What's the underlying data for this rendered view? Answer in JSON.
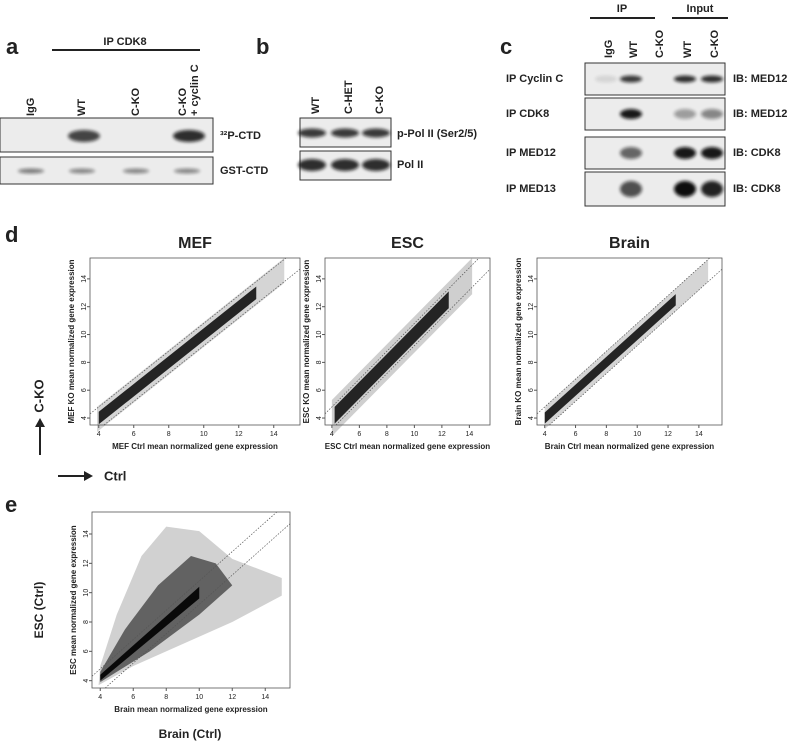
{
  "panel_a": {
    "letter": "a",
    "header": "IP CDK8",
    "lanes": [
      "IgG",
      "WT",
      "C-KO",
      "C-KO + cyclin C"
    ],
    "rows": [
      "³²P-CTD",
      "GST-CTD"
    ]
  },
  "panel_b": {
    "letter": "b",
    "lanes": [
      "WT",
      "C-HET",
      "C-KO"
    ],
    "rows": [
      "p-Pol II (Ser2/5)",
      "Pol II"
    ]
  },
  "panel_c": {
    "letter": "c",
    "groups": [
      "IP",
      "Input"
    ],
    "lanes": [
      "IgG",
      "WT",
      "C-KO",
      "WT",
      "C-KO"
    ],
    "rows": [
      {
        "ip": "IP Cyclin C",
        "ib": "IB: MED12"
      },
      {
        "ip": "IP CDK8",
        "ib": "IB: MED12"
      },
      {
        "ip": "IP MED12",
        "ib": "IB: CDK8"
      },
      {
        "ip": "IP MED13",
        "ib": "IB: CDK8"
      }
    ]
  },
  "panel_d": {
    "letter": "d",
    "y_direction": "C-KO",
    "x_direction": "Ctrl",
    "plots": [
      {
        "title": "MEF",
        "xlabel": "MEF Ctrl mean normalized gene expression",
        "ylabel": "MEF KO mean normalized gene expression",
        "xlim": [
          3.5,
          15.5
        ],
        "ylim": [
          3.5,
          15.5
        ],
        "xticks": [
          4,
          6,
          8,
          10,
          12,
          14
        ],
        "yticks": [
          4,
          6,
          8,
          10,
          12,
          14
        ]
      },
      {
        "title": "ESC",
        "xlabel": "ESC Ctrl mean normalized gene expression",
        "ylabel": "ESC KO mean normalized gene expression",
        "xlim": [
          3.5,
          15.5
        ],
        "ylim": [
          3.5,
          15.5
        ],
        "xticks": [
          4,
          6,
          8,
          10,
          12,
          14
        ],
        "yticks": [
          4,
          6,
          8,
          10,
          12,
          14
        ]
      },
      {
        "title": "Brain",
        "xlabel": "Brain Ctrl mean normalized gene expression",
        "ylabel": "Brain KO mean normalized gene expression",
        "xlim": [
          3.5,
          15.5
        ],
        "ylim": [
          3.5,
          15.5
        ],
        "xticks": [
          4,
          6,
          8,
          10,
          12,
          14
        ],
        "yticks": [
          4,
          6,
          8,
          10,
          12,
          14
        ]
      }
    ]
  },
  "panel_e": {
    "letter": "e",
    "xlabel": "Brain mean normalized gene expression",
    "ylabel": "ESC  mean normalized gene expression",
    "x_title": "Brain (Ctrl)",
    "y_title": "ESC (Ctrl)",
    "xlim": [
      3.5,
      15.5
    ],
    "ylim": [
      3.5,
      15.5
    ],
    "xticks": [
      4,
      6,
      8,
      10,
      12,
      14
    ],
    "yticks": [
      4,
      6,
      8,
      10,
      12,
      14
    ]
  }
}
